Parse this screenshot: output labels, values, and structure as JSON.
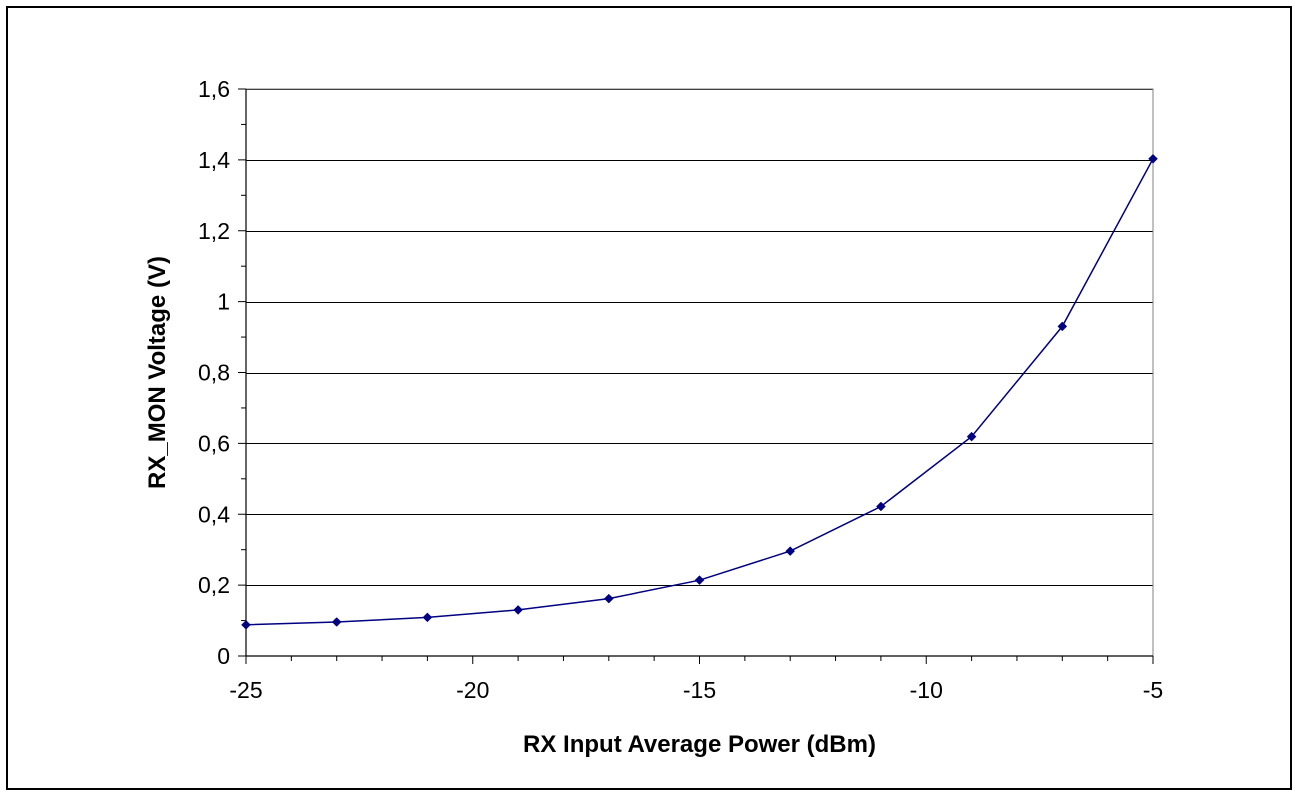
{
  "chart_data": {
    "type": "line",
    "title": "",
    "xlabel": "RX Input Average Power (dBm)",
    "ylabel": "RX_MON Voltage (V)",
    "xlim": [
      -25,
      -5
    ],
    "ylim": [
      0,
      1.6
    ],
    "x_ticks": [
      -25,
      -20,
      -15,
      -10,
      -5
    ],
    "x_tick_labels": [
      "-25",
      "-20",
      "-15",
      "-10",
      "-5"
    ],
    "x_minor_step": 1,
    "y_ticks": [
      0,
      0.2,
      0.4,
      0.6,
      0.8,
      1,
      1.2,
      1.4,
      1.6
    ],
    "y_tick_labels": [
      "0",
      "0,2",
      "0,4",
      "0,6",
      "0,8",
      "1",
      "1,2",
      "1,4",
      "1,6"
    ],
    "y_minor_step": 0.1,
    "grid": "horizontal major",
    "legend": "none",
    "series": [
      {
        "color": "#000080",
        "marker": "diamond",
        "x": [
          -25,
          -23,
          -21,
          -19,
          -17,
          -15,
          -13,
          -11,
          -9,
          -7,
          -5
        ],
        "y": [
          0.088,
          0.096,
          0.109,
          0.13,
          0.162,
          0.214,
          0.296,
          0.422,
          0.619,
          0.93,
          1.403
        ]
      }
    ]
  }
}
